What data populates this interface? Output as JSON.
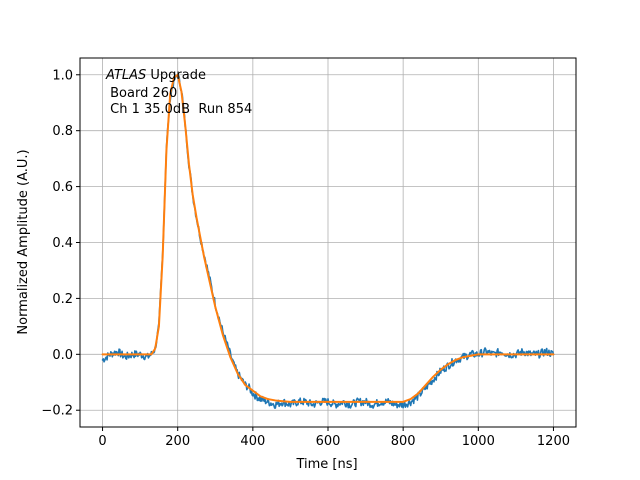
{
  "chart_data": {
    "type": "line",
    "xlabel": "Time [ns]",
    "ylabel": "Normalized Amplitude (A.U.)",
    "xlim": [
      -60,
      1260
    ],
    "ylim": [
      -0.26,
      1.06
    ],
    "xticks": [
      0,
      200,
      400,
      600,
      800,
      1000,
      1200
    ],
    "yticks": [
      -0.2,
      0.0,
      0.2,
      0.4,
      0.6,
      0.8,
      1.0
    ],
    "xtick_labels": [
      "0",
      "200",
      "400",
      "600",
      "800",
      "1000",
      "1200"
    ],
    "ytick_labels": [
      "−0.2",
      "0.0",
      "0.2",
      "0.4",
      "0.6",
      "0.8",
      "1.0"
    ],
    "grid": true,
    "annotation": {
      "line1_italic": "ATLAS",
      "line1_rest": " Upgrade",
      "line2": " Board 260",
      "line3": " Ch 1 35.0dB  Run 854"
    },
    "series": [
      {
        "color": "#1f77b4",
        "style": "noisy",
        "x": [
          0,
          20,
          40,
          60,
          80,
          100,
          120,
          130,
          140,
          150,
          160,
          170,
          180,
          190,
          200,
          210,
          220,
          230,
          240,
          250,
          260,
          270,
          280,
          290,
          300,
          310,
          320,
          330,
          340,
          350,
          360,
          370,
          380,
          390,
          400,
          420,
          440,
          460,
          480,
          500,
          520,
          540,
          560,
          580,
          600,
          620,
          640,
          660,
          680,
          700,
          720,
          740,
          760,
          780,
          800,
          820,
          840,
          860,
          880,
          900,
          920,
          940,
          960,
          980,
          1000,
          1020,
          1040,
          1060,
          1080,
          1100,
          1120,
          1140,
          1160,
          1180,
          1200
        ],
        "y": [
          -0.02,
          0.0,
          0.01,
          -0.01,
          0.0,
          0.0,
          -0.01,
          0.0,
          0.02,
          0.1,
          0.36,
          0.74,
          0.92,
          0.98,
          1.0,
          0.95,
          0.82,
          0.68,
          0.57,
          0.49,
          0.42,
          0.36,
          0.3,
          0.24,
          0.18,
          0.13,
          0.08,
          0.04,
          0.0,
          -0.04,
          -0.07,
          -0.09,
          -0.11,
          -0.12,
          -0.14,
          -0.16,
          -0.17,
          -0.18,
          -0.17,
          -0.18,
          -0.17,
          -0.17,
          -0.18,
          -0.17,
          -0.17,
          -0.18,
          -0.17,
          -0.18,
          -0.17,
          -0.17,
          -0.18,
          -0.17,
          -0.17,
          -0.18,
          -0.18,
          -0.17,
          -0.15,
          -0.12,
          -0.09,
          -0.06,
          -0.04,
          -0.02,
          -0.01,
          0.0,
          0.0,
          0.01,
          0.0,
          0.01,
          0.0,
          0.0,
          0.01,
          0.0,
          0.0,
          0.01,
          0.0
        ]
      },
      {
        "color": "#ff7f0e",
        "style": "smooth",
        "x": [
          0,
          20,
          40,
          60,
          80,
          100,
          120,
          130,
          140,
          150,
          160,
          170,
          180,
          190,
          200,
          210,
          220,
          230,
          240,
          250,
          260,
          270,
          280,
          290,
          300,
          310,
          320,
          330,
          340,
          350,
          360,
          370,
          380,
          390,
          400,
          420,
          440,
          460,
          480,
          500,
          520,
          540,
          560,
          580,
          600,
          620,
          640,
          660,
          680,
          700,
          720,
          740,
          760,
          780,
          800,
          820,
          840,
          860,
          880,
          900,
          920,
          940,
          960,
          980,
          1000,
          1020,
          1040,
          1060,
          1080,
          1100,
          1120,
          1140,
          1160,
          1180,
          1200
        ],
        "y": [
          0.0,
          0.0,
          0.0,
          0.0,
          0.0,
          0.0,
          0.0,
          0.0,
          0.02,
          0.1,
          0.35,
          0.73,
          0.93,
          0.99,
          1.0,
          0.94,
          0.82,
          0.68,
          0.57,
          0.49,
          0.42,
          0.35,
          0.29,
          0.23,
          0.17,
          0.12,
          0.07,
          0.03,
          -0.01,
          -0.04,
          -0.07,
          -0.09,
          -0.11,
          -0.12,
          -0.13,
          -0.15,
          -0.16,
          -0.165,
          -0.168,
          -0.17,
          -0.17,
          -0.17,
          -0.17,
          -0.17,
          -0.17,
          -0.17,
          -0.17,
          -0.17,
          -0.17,
          -0.17,
          -0.17,
          -0.17,
          -0.17,
          -0.17,
          -0.17,
          -0.16,
          -0.14,
          -0.11,
          -0.08,
          -0.055,
          -0.035,
          -0.02,
          -0.01,
          -0.005,
          0.0,
          0.0,
          0.0,
          0.0,
          0.0,
          0.0,
          0.0,
          0.0,
          0.0,
          0.0,
          0.0
        ]
      }
    ]
  }
}
